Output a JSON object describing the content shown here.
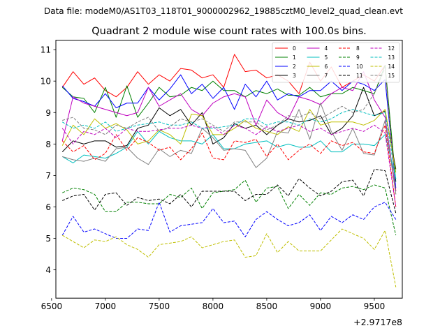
{
  "chart_data": {
    "type": "line",
    "suptitle": "Data file: modeM0/AS1T03_118T01_9000002962_19885cztM0_level2_quad_clean.evt",
    "title": "Quadrant 2 module wise count rates with 100.0s bins.",
    "xlabel": "",
    "ylabel": "",
    "x_offset_label": "+2.9717e8",
    "xlim": [
      6540,
      9760
    ],
    "ylim": [
      3.1,
      11.3
    ],
    "x_ticks": [
      6500,
      7000,
      7500,
      8000,
      8500,
      9000,
      9500
    ],
    "y_ticks": [
      4,
      5,
      6,
      7,
      8,
      9,
      10,
      11
    ],
    "x": [
      6600,
      6700,
      6800,
      6900,
      7000,
      7100,
      7200,
      7300,
      7400,
      7500,
      7600,
      7700,
      7800,
      7900,
      8000,
      8100,
      8200,
      8300,
      8400,
      8500,
      8600,
      8700,
      8800,
      8900,
      9000,
      9100,
      9200,
      9300,
      9400,
      9500,
      9600,
      9700
    ],
    "legend": {
      "location": "top-right",
      "columns": 4
    },
    "series": [
      {
        "name": "0",
        "color": "#ff0000",
        "dash": "solid",
        "values": [
          9.8,
          10.3,
          9.9,
          10.1,
          9.7,
          9.5,
          9.8,
          10.3,
          9.9,
          10.2,
          10.0,
          10.4,
          10.35,
          10.1,
          10.2,
          9.8,
          10.85,
          10.3,
          10.35,
          10.1,
          10.2,
          10.0,
          9.6,
          10.6,
          10.0,
          10.45,
          9.8,
          10.0,
          10.2,
          10.0,
          10.5,
          6.5
        ]
      },
      {
        "name": "1",
        "color": "#008000",
        "dash": "solid",
        "values": [
          9.8,
          9.5,
          9.45,
          9.0,
          9.8,
          8.85,
          9.85,
          8.85,
          9.3,
          9.8,
          9.5,
          9.55,
          9.8,
          9.7,
          10.0,
          9.7,
          9.7,
          9.5,
          9.7,
          9.6,
          9.75,
          9.55,
          9.55,
          9.8,
          9.5,
          9.6,
          9.6,
          9.8,
          9.7,
          9.6,
          10.5,
          6.8
        ]
      },
      {
        "name": "2",
        "color": "#0000ff",
        "dash": "solid",
        "values": [
          9.85,
          9.45,
          9.35,
          9.2,
          9.6,
          9.15,
          9.3,
          9.3,
          9.8,
          9.4,
          9.75,
          10.2,
          9.6,
          9.9,
          9.45,
          9.8,
          9.1,
          9.9,
          9.5,
          10.0,
          9.4,
          9.6,
          9.5,
          9.7,
          9.7,
          10.0,
          9.7,
          10.0,
          9.9,
          9.7,
          10.05,
          6.6
        ]
      },
      {
        "name": "3",
        "color": "#000000",
        "dash": "solid",
        "values": [
          7.75,
          8.1,
          8.0,
          8.1,
          8.1,
          7.9,
          7.95,
          8.5,
          8.6,
          9.15,
          8.9,
          9.1,
          8.6,
          9.0,
          8.0,
          8.2,
          8.65,
          8.5,
          8.6,
          8.3,
          8.6,
          8.8,
          8.7,
          8.75,
          8.9,
          8.3,
          8.5,
          8.9,
          9.8,
          8.9,
          9.05,
          7.2
        ]
      },
      {
        "name": "4",
        "color": "#bf00bf",
        "dash": "solid",
        "values": [
          8.1,
          9.5,
          9.3,
          9.2,
          9.1,
          9.0,
          8.9,
          9.0,
          9.8,
          9.2,
          9.4,
          9.6,
          9.1,
          8.9,
          9.3,
          9.5,
          9.6,
          9.5,
          8.6,
          9.4,
          9.0,
          8.8,
          9.5,
          9.4,
          9.25,
          9.6,
          9.8,
          9.7,
          10.3,
          9.4,
          8.85,
          6.5
        ]
      },
      {
        "name": "5",
        "color": "#00bfbf",
        "dash": "solid",
        "values": [
          7.6,
          7.4,
          7.65,
          7.6,
          7.55,
          7.7,
          7.9,
          8.4,
          8.0,
          8.4,
          8.2,
          8.1,
          8.1,
          8.0,
          8.3,
          7.85,
          7.85,
          8.0,
          8.05,
          8.1,
          7.9,
          8.0,
          7.9,
          7.9,
          8.1,
          7.75,
          7.75,
          8.0,
          8.0,
          7.95,
          8.3,
          6.9
        ]
      },
      {
        "name": "6",
        "color": "#bfbf00",
        "dash": "solid",
        "values": [
          7.95,
          8.6,
          8.3,
          8.8,
          8.5,
          8.65,
          8.45,
          8.0,
          8.1,
          8.45,
          8.3,
          8.0,
          8.95,
          8.9,
          8.3,
          8.3,
          8.5,
          8.75,
          8.5,
          8.4,
          8.3,
          8.55,
          8.4,
          9.1,
          8.6,
          8.7,
          8.7,
          8.7,
          8.6,
          8.75,
          9.1,
          7.1
        ]
      },
      {
        "name": "7",
        "color": "#808080",
        "dash": "solid",
        "values": [
          7.6,
          7.5,
          7.45,
          7.55,
          7.45,
          7.85,
          7.9,
          7.55,
          7.35,
          7.85,
          7.6,
          7.8,
          7.7,
          8.5,
          8.2,
          7.8,
          7.85,
          7.8,
          7.25,
          7.55,
          8.4,
          8.35,
          9.1,
          8.15,
          9.3,
          8.4,
          7.8,
          8.5,
          7.7,
          7.65,
          8.75,
          6.4
        ]
      },
      {
        "name": "8",
        "color": "#ff0000",
        "dash": "dashed",
        "values": [
          8.1,
          7.75,
          7.95,
          7.5,
          7.7,
          8.3,
          7.8,
          8.2,
          8.05,
          7.8,
          7.9,
          7.5,
          7.85,
          8.35,
          7.55,
          7.5,
          8.1,
          8.05,
          8.15,
          7.6,
          8.0,
          7.5,
          7.8,
          8.0,
          7.7,
          8.1,
          7.95,
          8.05,
          7.75,
          7.7,
          8.6,
          6.0
        ]
      },
      {
        "name": "9",
        "color": "#008000",
        "dash": "dashed",
        "values": [
          6.45,
          6.6,
          6.55,
          6.4,
          5.85,
          5.85,
          6.15,
          6.15,
          6.1,
          6.1,
          6.4,
          6.3,
          6.6,
          5.95,
          6.45,
          6.5,
          6.55,
          6.85,
          6.15,
          6.6,
          6.65,
          5.95,
          6.4,
          6.05,
          6.45,
          6.4,
          6.6,
          6.65,
          6.55,
          6.7,
          6.6,
          5.1
        ]
      },
      {
        "name": "10",
        "color": "#0000ff",
        "dash": "dashed",
        "values": [
          5.1,
          5.7,
          5.2,
          5.3,
          5.15,
          5.0,
          5.0,
          5.3,
          5.25,
          6.15,
          5.2,
          5.4,
          5.45,
          5.5,
          5.95,
          5.5,
          5.55,
          5.05,
          5.6,
          5.85,
          5.6,
          5.4,
          5.5,
          5.75,
          5.25,
          5.7,
          5.5,
          5.75,
          5.6,
          6.0,
          6.15,
          5.6
        ]
      },
      {
        "name": "11",
        "color": "#000000",
        "dash": "dashed",
        "values": [
          6.2,
          6.35,
          6.4,
          5.9,
          6.4,
          6.45,
          6.05,
          6.3,
          6.2,
          6.25,
          6.1,
          6.4,
          6.0,
          6.5,
          6.5,
          6.5,
          6.5,
          6.2,
          6.4,
          6.4,
          6.7,
          6.35,
          6.9,
          6.6,
          6.35,
          6.5,
          6.8,
          6.85,
          6.35,
          7.2,
          7.15,
          5.8
        ]
      },
      {
        "name": "12",
        "color": "#bf00bf",
        "dash": "dashed",
        "values": [
          8.5,
          8.0,
          8.4,
          8.3,
          8.5,
          8.2,
          8.5,
          8.4,
          8.4,
          8.45,
          8.5,
          8.5,
          8.6,
          8.5,
          8.55,
          8.3,
          8.6,
          8.5,
          8.3,
          8.55,
          8.4,
          8.5,
          8.6,
          8.4,
          8.5,
          8.3,
          8.4,
          8.5,
          8.4,
          8.6,
          8.35,
          6.0
        ]
      },
      {
        "name": "13",
        "color": "#00bfbf",
        "dash": "dashed",
        "values": [
          8.7,
          8.5,
          8.6,
          8.5,
          8.7,
          8.4,
          8.5,
          8.6,
          8.65,
          8.7,
          8.6,
          8.6,
          8.7,
          8.5,
          8.5,
          8.55,
          8.6,
          8.8,
          8.8,
          8.6,
          8.7,
          8.7,
          8.6,
          8.8,
          8.7,
          8.8,
          9.0,
          9.1,
          9.0,
          8.9,
          9.0,
          6.9
        ]
      },
      {
        "name": "14",
        "color": "#bfbf00",
        "dash": "dashed",
        "values": [
          5.1,
          4.9,
          4.7,
          4.95,
          4.9,
          5.05,
          4.8,
          4.65,
          4.4,
          4.8,
          4.85,
          4.9,
          5.05,
          4.7,
          4.8,
          4.9,
          4.95,
          4.4,
          4.45,
          5.15,
          4.55,
          4.9,
          4.6,
          4.6,
          4.6,
          4.95,
          5.3,
          5.15,
          5.0,
          4.65,
          5.25,
          3.45
        ]
      },
      {
        "name": "15",
        "color": "#808080",
        "dash": "dashed",
        "values": [
          8.75,
          8.85,
          8.5,
          8.45,
          8.3,
          8.6,
          8.5,
          8.7,
          8.85,
          8.4,
          8.55,
          8.8,
          8.7,
          8.8,
          8.6,
          8.4,
          8.7,
          8.7,
          8.7,
          8.45,
          8.6,
          8.9,
          8.85,
          9.0,
          8.8,
          9.0,
          9.2,
          9.0,
          9.1,
          9.6,
          10.4,
          6.4
        ]
      }
    ]
  }
}
